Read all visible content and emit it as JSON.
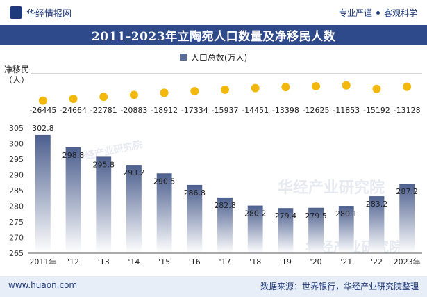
{
  "header": {
    "brand": "华经情报网",
    "tagline_left": "专业严谨",
    "tagline_right": "客观科学"
  },
  "title": "2011-2023年立陶宛人口数量及净移民人数",
  "legend": {
    "series_name": "人口总数(万人)"
  },
  "net_migration_label_line1": "净移民",
  "net_migration_label_line2": "（人）",
  "footer": {
    "site": "www.huaon.com",
    "source": "数据来源：世界银行，华经产业研究院整理"
  },
  "watermark": "华经产业研究院",
  "colors": {
    "title_bg": "#2f4a8a",
    "bar_top": "#4c5f8e",
    "bar_bottom": "#ffffff",
    "dot": "#f2b90c",
    "footer_bg": "#e8eef8"
  },
  "chart_data": [
    {
      "type": "bar",
      "categories": [
        "2011年",
        "'12",
        "'13",
        "'14",
        "'15",
        "'16",
        "'17",
        "'18",
        "'19",
        "'20",
        "'21",
        "'22",
        "2023年"
      ],
      "series": [
        {
          "name": "人口总数(万人)",
          "values": [
            302.8,
            298.8,
            295.8,
            293.2,
            290.5,
            286.8,
            282.8,
            280.2,
            279.4,
            279.5,
            280.1,
            283.2,
            287.2
          ]
        }
      ],
      "value_labels": [
        "302.8",
        "298.8",
        "295.8",
        "293.2",
        "290.5",
        "286.8",
        "282.8",
        "280.2",
        "279.4",
        "279.5",
        "280.1",
        "283.2",
        "287.2"
      ],
      "ylim": [
        265,
        305
      ],
      "yticks": [
        "265",
        "270",
        "275",
        "280",
        "285",
        "290",
        "295",
        "300",
        "305"
      ],
      "grid": false
    },
    {
      "type": "scatter",
      "name": "净移民（人）",
      "categories": [
        "2011年",
        "'12",
        "'13",
        "'14",
        "'15",
        "'16",
        "'17",
        "'18",
        "'19",
        "'20",
        "'21",
        "'22",
        "2023年"
      ],
      "values": [
        -26445,
        -24664,
        -22781,
        -20883,
        -18912,
        -17334,
        -15937,
        -14451,
        -13398,
        -12625,
        -11853,
        -15192,
        -13128
      ],
      "value_labels": [
        "-26445",
        "-24664",
        "-22781",
        "-20883",
        "-18912",
        "-17334",
        "-15937",
        "-14451",
        "-13398",
        "-12625",
        "-11853",
        "-15192",
        "-13128"
      ]
    }
  ]
}
